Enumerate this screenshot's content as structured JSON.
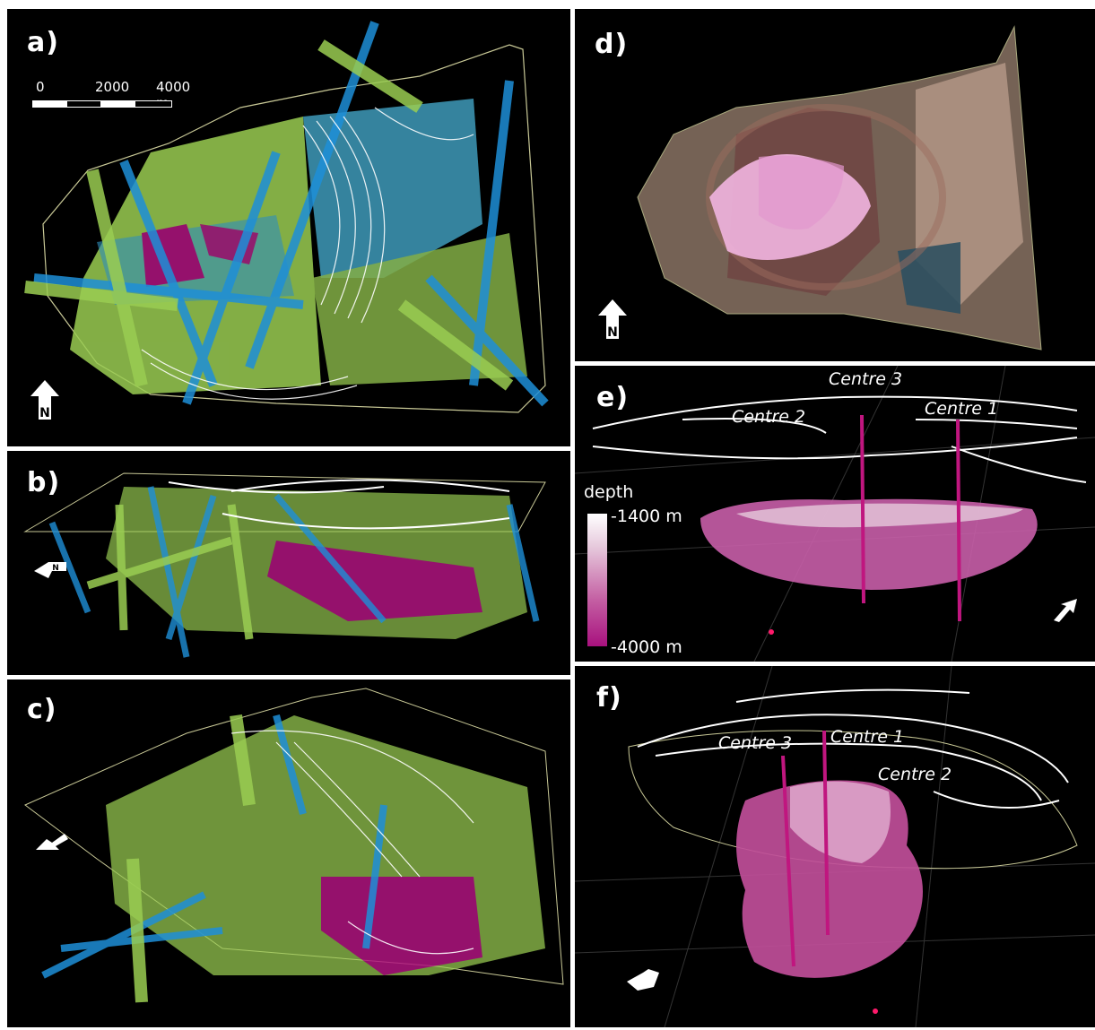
{
  "panels": {
    "a": {
      "label": "a)"
    },
    "b": {
      "label": "b)"
    },
    "c": {
      "label": "c)"
    },
    "d": {
      "label": "d)"
    },
    "e": {
      "label": "e)"
    },
    "f": {
      "label": "f)"
    }
  },
  "scale_bar": {
    "tick_0": "0",
    "tick_1": "2000",
    "tick_2": "4000 m"
  },
  "north_arrow": {
    "letter": "N"
  },
  "panel_e": {
    "centre_1": "Centre 1",
    "centre_2": "Centre 2",
    "centre_3": "Centre 3",
    "legend": {
      "title": "depth",
      "top": "-1400 m",
      "bottom": "-4000 m"
    }
  },
  "panel_f": {
    "centre_1": "Centre 1",
    "centre_2": "Centre 2",
    "centre_3": "Centre 3"
  },
  "colors": {
    "background": "#000000",
    "green_sections": "#9acd52",
    "blue_sections": "#1e90d6",
    "magenta_body": "#b0157f",
    "pink_body": "#e9a6d4",
    "outline": "#c8c896"
  }
}
